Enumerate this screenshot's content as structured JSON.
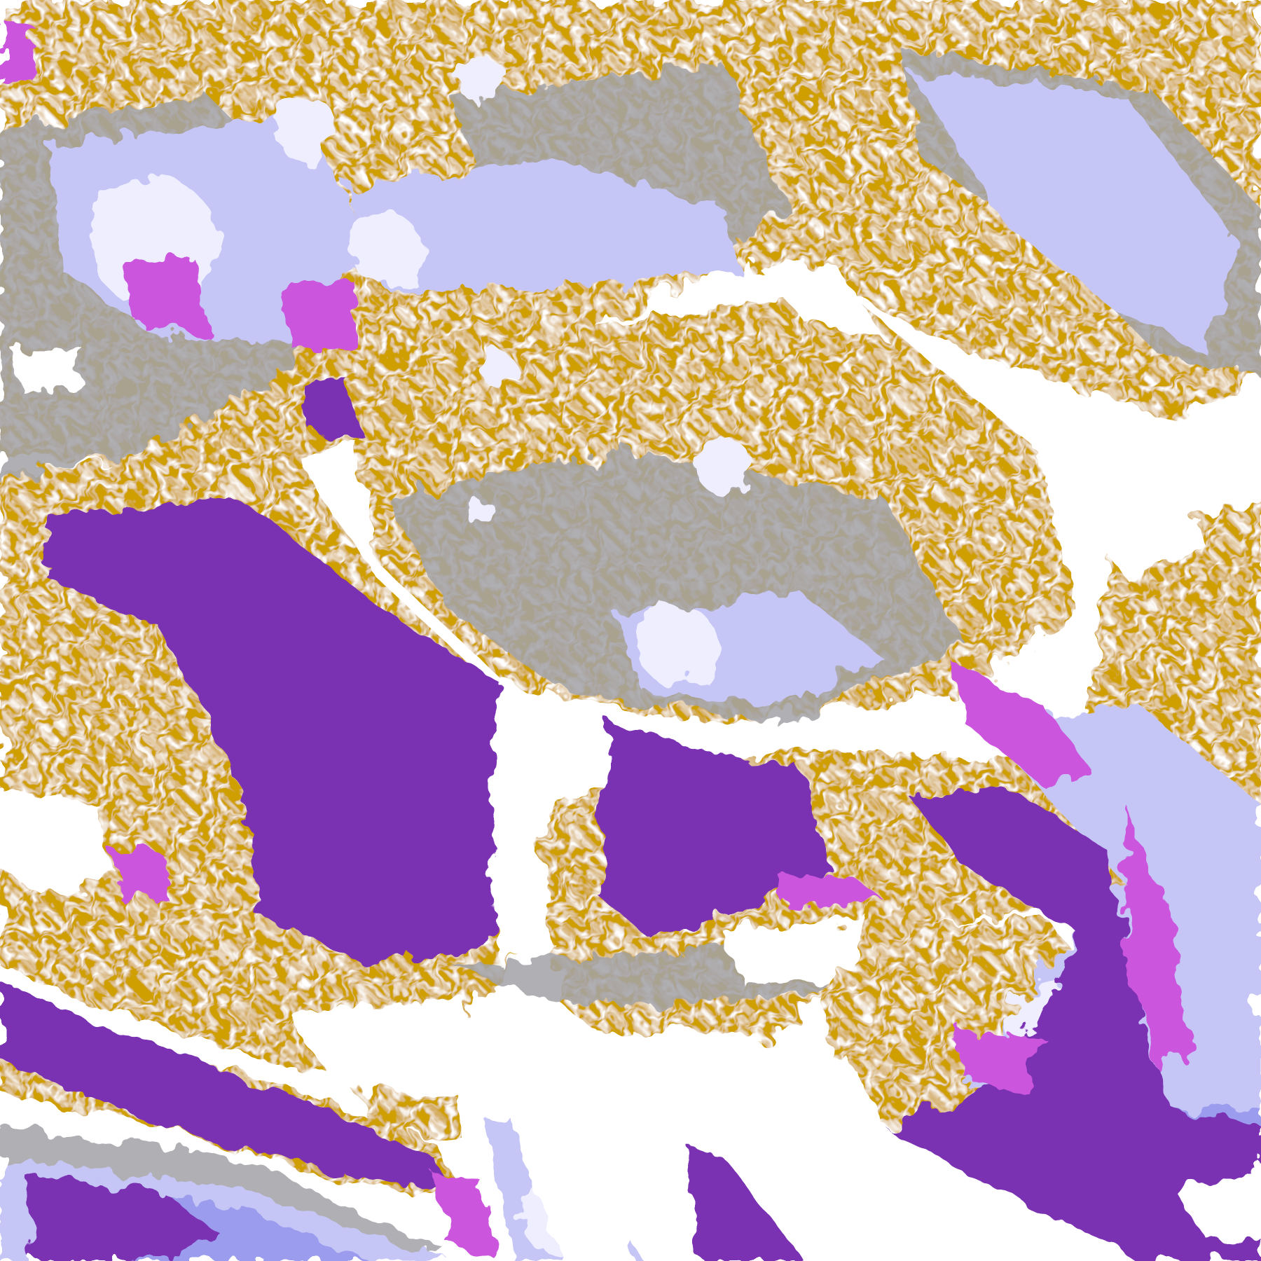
{
  "image": {
    "kind": "satellite-cloud-classification",
    "colors": {
      "background": "#ffffff",
      "gold": "#cf9f00",
      "dark_gold": "#b88a00",
      "purple": "#7a30b2",
      "magenta": "#cc55dd",
      "lavender": "#c6c6f6",
      "pale": "#eeeeff",
      "periwinkle": "#9c9cee",
      "gray": "#a3a3a8"
    }
  }
}
